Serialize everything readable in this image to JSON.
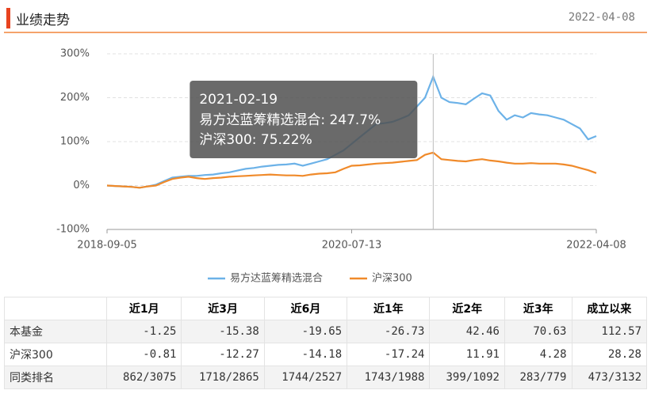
{
  "header": {
    "title": "业绩走势",
    "date": "2022-04-08"
  },
  "chart_data": {
    "type": "line",
    "categories": [
      "2018-09-05",
      null,
      null,
      null,
      null,
      null,
      null,
      null,
      null,
      null,
      null,
      null,
      null,
      null,
      null,
      null,
      null,
      null,
      null,
      null,
      null,
      null,
      null,
      null,
      null,
      null,
      null,
      null,
      null,
      null,
      "2020-07-13",
      null,
      null,
      null,
      null,
      null,
      null,
      null,
      null,
      null,
      null,
      null,
      null,
      null,
      null,
      null,
      null,
      null,
      null,
      null,
      null,
      null,
      null,
      null,
      null,
      null,
      null,
      null,
      null,
      null,
      "2022-04-08"
    ],
    "series": [
      {
        "name": "易方达蓝筹精选混合",
        "color": "#6cb2e8",
        "values": [
          0,
          -1,
          -2,
          -3,
          -5,
          -2,
          2,
          10,
          18,
          20,
          22,
          22,
          24,
          25,
          28,
          30,
          34,
          38,
          40,
          43,
          45,
          47,
          48,
          50,
          45,
          50,
          55,
          60,
          70,
          80,
          95,
          110,
          125,
          140,
          142,
          145,
          152,
          160,
          180,
          200,
          247.7,
          200,
          190,
          188,
          185,
          198,
          210,
          205,
          170,
          150,
          160,
          155,
          165,
          162,
          160,
          155,
          150,
          140,
          130,
          105,
          112.57
        ]
      },
      {
        "name": "沪深300",
        "color": "#f08a2a",
        "values": [
          0,
          -1,
          -2,
          -3,
          -5,
          -2,
          0,
          8,
          15,
          18,
          20,
          17,
          15,
          17,
          18,
          20,
          21,
          22,
          23,
          24,
          25,
          24,
          23,
          23,
          22,
          25,
          27,
          28,
          30,
          38,
          45,
          46,
          48,
          50,
          51,
          52,
          54,
          56,
          58,
          70,
          75.22,
          60,
          58,
          56,
          55,
          58,
          60,
          57,
          55,
          52,
          50,
          50,
          51,
          50,
          50,
          50,
          48,
          45,
          40,
          35,
          28.28
        ]
      }
    ],
    "ylim": [
      -100,
      300
    ],
    "yticks": [
      {
        "value": -100,
        "label": "-100%"
      },
      {
        "value": 0,
        "label": "0%"
      },
      {
        "value": 100,
        "label": "100%"
      },
      {
        "value": 200,
        "label": "200%"
      },
      {
        "value": 300,
        "label": "300%"
      }
    ],
    "grid": true,
    "legend": "bottom",
    "tooltip": {
      "title": "2021-02-19",
      "lines": [
        "易方达蓝筹精选混合: 247.7%",
        "沪深300: 75.22%"
      ]
    }
  },
  "table": {
    "columns": [
      "近1月",
      "近3月",
      "近6月",
      "近1年",
      "近2年",
      "近3年",
      "成立以来"
    ],
    "rows": [
      [
        "本基金",
        "-1.25",
        "-15.38",
        "-19.65",
        "-26.73",
        "42.46",
        "70.63",
        "112.57"
      ],
      [
        "沪深300",
        "-0.81",
        "-12.27",
        "-14.18",
        "-17.24",
        "11.91",
        "4.28",
        "28.28"
      ],
      [
        "同类排名",
        "862/3075",
        "1718/2865",
        "1744/2527",
        "1743/1988",
        "399/1092",
        "283/779",
        "473/3132"
      ]
    ]
  }
}
